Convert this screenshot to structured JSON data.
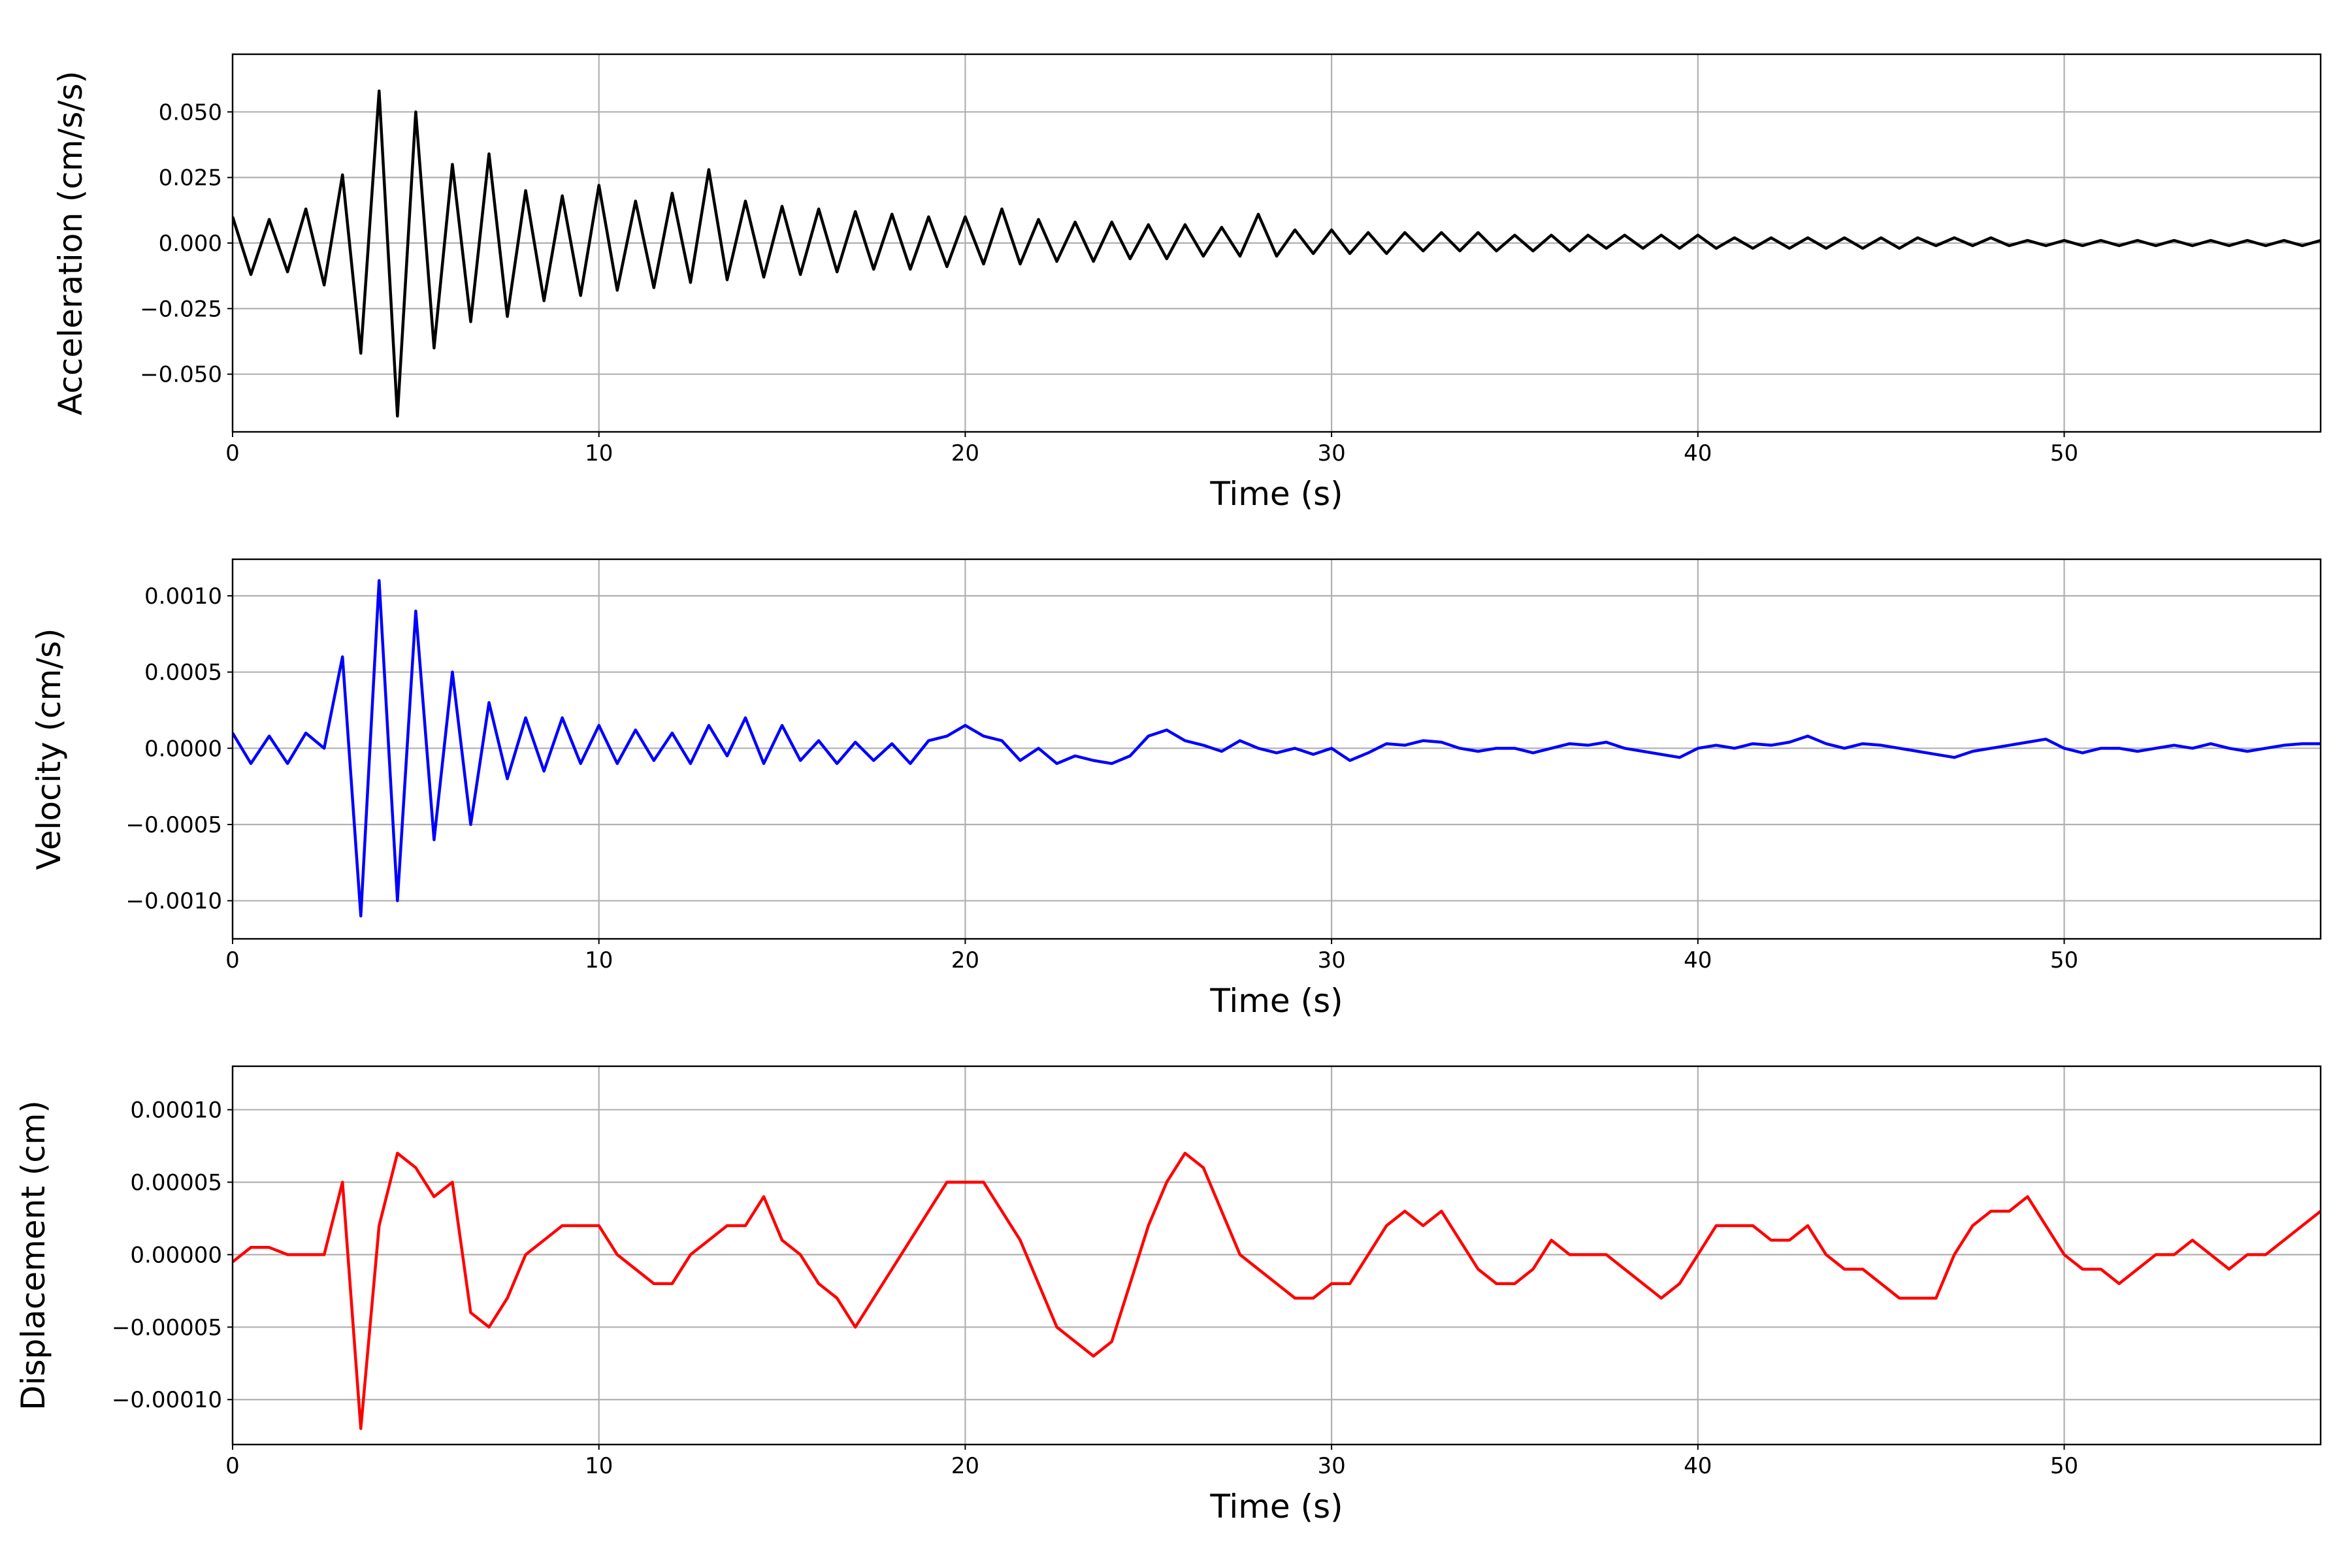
{
  "chart_data": [
    {
      "type": "line",
      "ylabel": "Acceleration (cm/s/s)",
      "xlabel": "Time (s)",
      "color": "#000000",
      "grid": true,
      "xlim": [
        0,
        57
      ],
      "xticks": [
        0,
        10,
        20,
        30,
        40,
        50
      ],
      "ylim": [
        -0.072,
        0.072
      ],
      "yticks": [
        {
          "value": -0.05,
          "label": "−0.050"
        },
        {
          "value": -0.025,
          "label": "−0.025"
        },
        {
          "value": 0,
          "label": "0.000"
        },
        {
          "value": 0.025,
          "label": "0.025"
        },
        {
          "value": 0.05,
          "label": "0.050"
        }
      ],
      "x": [
        0,
        0.5,
        1,
        1.5,
        2,
        2.5,
        3,
        3.5,
        4,
        4.5,
        5,
        5.5,
        6,
        6.5,
        7,
        7.5,
        8,
        8.5,
        9,
        9.5,
        10,
        10.5,
        11,
        11.5,
        12,
        12.5,
        13,
        13.5,
        14,
        14.5,
        15,
        15.5,
        16,
        16.5,
        17,
        17.5,
        18,
        18.5,
        19,
        19.5,
        20,
        20.5,
        21,
        21.5,
        22,
        22.5,
        23,
        23.5,
        24,
        24.5,
        25,
        25.5,
        26,
        26.5,
        27,
        27.5,
        28,
        28.5,
        29,
        29.5,
        30,
        30.5,
        31,
        31.5,
        32,
        32.5,
        33,
        33.5,
        34,
        34.5,
        35,
        35.5,
        36,
        36.5,
        37,
        37.5,
        38,
        38.5,
        39,
        39.5,
        40,
        40.5,
        41,
        41.5,
        42,
        42.5,
        43,
        43.5,
        44,
        44.5,
        45,
        45.5,
        46,
        46.5,
        47,
        47.5,
        48,
        48.5,
        49,
        49.5,
        50,
        50.5,
        51,
        51.5,
        52,
        52.5,
        53,
        53.5,
        54,
        54.5,
        55,
        55.5,
        56,
        56.5,
        57
      ],
      "values": [
        0.01,
        -0.012,
        0.009,
        -0.011,
        0.013,
        -0.016,
        0.026,
        -0.042,
        0.058,
        -0.066,
        0.05,
        -0.04,
        0.03,
        -0.03,
        0.034,
        -0.028,
        0.02,
        -0.022,
        0.018,
        -0.02,
        0.022,
        -0.018,
        0.016,
        -0.017,
        0.019,
        -0.015,
        0.028,
        -0.014,
        0.016,
        -0.013,
        0.014,
        -0.012,
        0.013,
        -0.011,
        0.012,
        -0.01,
        0.011,
        -0.01,
        0.01,
        -0.009,
        0.01,
        -0.008,
        0.013,
        -0.008,
        0.009,
        -0.007,
        0.008,
        -0.007,
        0.008,
        -0.006,
        0.007,
        -0.006,
        0.007,
        -0.005,
        0.006,
        -0.005,
        0.011,
        -0.005,
        0.005,
        -0.004,
        0.005,
        -0.004,
        0.004,
        -0.004,
        0.004,
        -0.003,
        0.004,
        -0.003,
        0.004,
        -0.003,
        0.003,
        -0.003,
        0.003,
        -0.003,
        0.003,
        -0.002,
        0.003,
        -0.002,
        0.003,
        -0.002,
        0.003,
        -0.002,
        0.002,
        -0.002,
        0.002,
        -0.002,
        0.002,
        -0.002,
        0.002,
        -0.002,
        0.002,
        -0.002,
        0.002,
        -0.001,
        0.002,
        -0.001,
        0.002,
        -0.001,
        0.001,
        -0.001,
        0.001,
        -0.001,
        0.001,
        -0.001,
        0.001,
        -0.001,
        0.001,
        -0.001,
        0.001,
        -0.001,
        0.001,
        -0.001,
        0.001,
        -0.001,
        0.001
      ]
    },
    {
      "type": "line",
      "ylabel": "Velocity (cm/s)",
      "xlabel": "Time (s)",
      "color": "#0000ff",
      "grid": true,
      "xlim": [
        0,
        57
      ],
      "xticks": [
        0,
        10,
        20,
        30,
        40,
        50
      ],
      "ylim": [
        -0.00125,
        0.00124
      ],
      "yticks": [
        {
          "value": -0.001,
          "label": "−0.0010"
        },
        {
          "value": -0.0005,
          "label": "−0.0005"
        },
        {
          "value": 0,
          "label": "0.0000"
        },
        {
          "value": 0.0005,
          "label": "0.0005"
        },
        {
          "value": 0.001,
          "label": "0.0010"
        }
      ],
      "x": [
        0,
        0.5,
        1,
        1.5,
        2,
        2.5,
        3,
        3.5,
        4,
        4.5,
        5,
        5.5,
        6,
        6.5,
        7,
        7.5,
        8,
        8.5,
        9,
        9.5,
        10,
        10.5,
        11,
        11.5,
        12,
        12.5,
        13,
        13.5,
        14,
        14.5,
        15,
        15.5,
        16,
        16.5,
        17,
        17.5,
        18,
        18.5,
        19,
        19.5,
        20,
        20.5,
        21,
        21.5,
        22,
        22.5,
        23,
        23.5,
        24,
        24.5,
        25,
        25.5,
        26,
        26.5,
        27,
        27.5,
        28,
        28.5,
        29,
        29.5,
        30,
        30.5,
        31,
        31.5,
        32,
        32.5,
        33,
        33.5,
        34,
        34.5,
        35,
        35.5,
        36,
        36.5,
        37,
        37.5,
        38,
        38.5,
        39,
        39.5,
        40,
        40.5,
        41,
        41.5,
        42,
        42.5,
        43,
        43.5,
        44,
        44.5,
        45,
        45.5,
        46,
        46.5,
        47,
        47.5,
        48,
        48.5,
        49,
        49.5,
        50,
        50.5,
        51,
        51.5,
        52,
        52.5,
        53,
        53.5,
        54,
        54.5,
        55,
        55.5,
        56,
        56.5,
        57
      ],
      "values": [
        0.0001,
        -0.0001,
        8e-05,
        -0.0001,
        0.0001,
        0.0,
        0.0006,
        -0.0011,
        0.0011,
        -0.001,
        0.0009,
        -0.0006,
        0.0005,
        -0.0005,
        0.0003,
        -0.0002,
        0.0002,
        -0.00015,
        0.0002,
        -0.0001,
        0.00015,
        -0.0001,
        0.00012,
        -8e-05,
        0.0001,
        -0.0001,
        0.00015,
        -5e-05,
        0.0002,
        -0.0001,
        0.00015,
        -8e-05,
        5e-05,
        -0.0001,
        4e-05,
        -8e-05,
        3e-05,
        -0.0001,
        5e-05,
        8e-05,
        0.00015,
        8e-05,
        5e-05,
        -8e-05,
        0.0,
        -0.0001,
        -5e-05,
        -8e-05,
        -0.0001,
        -5e-05,
        8e-05,
        0.00012,
        5e-05,
        2e-05,
        -2e-05,
        5e-05,
        0.0,
        -3e-05,
        0.0,
        -4e-05,
        0.0,
        -8e-05,
        -3e-05,
        3e-05,
        2e-05,
        5e-05,
        4e-05,
        0.0,
        -2e-05,
        0.0,
        0.0,
        -3e-05,
        0.0,
        3e-05,
        2e-05,
        4e-05,
        0.0,
        -2e-05,
        -4e-05,
        -6e-05,
        0.0,
        2e-05,
        0.0,
        3e-05,
        2e-05,
        4e-05,
        8e-05,
        3e-05,
        0.0,
        3e-05,
        2e-05,
        0.0,
        -2e-05,
        -4e-05,
        -6e-05,
        -2e-05,
        0.0,
        2e-05,
        4e-05,
        6e-05,
        0.0,
        -3e-05,
        0.0,
        0.0,
        -2e-05,
        0.0,
        2e-05,
        0.0,
        3e-05,
        0.0,
        -2e-05,
        0.0,
        2e-05,
        3e-05,
        3e-05
      ]
    },
    {
      "type": "line",
      "ylabel": "Displacement (cm)",
      "xlabel": "Time (s)",
      "color": "#ff0000",
      "grid": true,
      "xlim": [
        0,
        57
      ],
      "xticks": [
        0,
        10,
        20,
        30,
        40,
        50
      ],
      "ylim": [
        -0.000131,
        0.00013
      ],
      "yticks": [
        {
          "value": -0.0001,
          "label": "−0.00010"
        },
        {
          "value": -5e-05,
          "label": "−0.00005"
        },
        {
          "value": 0,
          "label": "0.00000"
        },
        {
          "value": 5e-05,
          "label": "0.00005"
        },
        {
          "value": 0.0001,
          "label": "0.00010"
        }
      ],
      "x": [
        0,
        0.5,
        1,
        1.5,
        2,
        2.5,
        3,
        3.5,
        4,
        4.5,
        5,
        5.5,
        6,
        6.5,
        7,
        7.5,
        8,
        8.5,
        9,
        9.5,
        10,
        10.5,
        11,
        11.5,
        12,
        12.5,
        13,
        13.5,
        14,
        14.5,
        15,
        15.5,
        16,
        16.5,
        17,
        17.5,
        18,
        18.5,
        19,
        19.5,
        20,
        20.5,
        21,
        21.5,
        22,
        22.5,
        23,
        23.5,
        24,
        24.5,
        25,
        25.5,
        26,
        26.5,
        27,
        27.5,
        28,
        28.5,
        29,
        29.5,
        30,
        30.5,
        31,
        31.5,
        32,
        32.5,
        33,
        33.5,
        34,
        34.5,
        35,
        35.5,
        36,
        36.5,
        37,
        37.5,
        38,
        38.5,
        39,
        39.5,
        40,
        40.5,
        41,
        41.5,
        42,
        42.5,
        43,
        43.5,
        44,
        44.5,
        45,
        45.5,
        46,
        46.5,
        47,
        47.5,
        48,
        48.5,
        49,
        49.5,
        50,
        50.5,
        51,
        51.5,
        52,
        52.5,
        53,
        53.5,
        54,
        54.5,
        55,
        55.5,
        56,
        56.5,
        57
      ],
      "values": [
        -5e-06,
        5e-06,
        5e-06,
        0.0,
        0.0,
        0.0,
        5e-05,
        -0.00012,
        2e-05,
        7e-05,
        6e-05,
        4e-05,
        5e-05,
        -4e-05,
        -5e-05,
        -3e-05,
        0.0,
        1e-05,
        2e-05,
        2e-05,
        2e-05,
        0.0,
        -1e-05,
        -2e-05,
        -2e-05,
        0.0,
        1e-05,
        2e-05,
        2e-05,
        4e-05,
        1e-05,
        0.0,
        -2e-05,
        -3e-05,
        -5e-05,
        -3e-05,
        -1e-05,
        1e-05,
        3e-05,
        5e-05,
        5e-05,
        5e-05,
        3e-05,
        1e-05,
        -2e-05,
        -5e-05,
        -6e-05,
        -7e-05,
        -6e-05,
        -2e-05,
        2e-05,
        5e-05,
        7e-05,
        6e-05,
        3e-05,
        0.0,
        -1e-05,
        -2e-05,
        -3e-05,
        -3e-05,
        -2e-05,
        -2e-05,
        0.0,
        2e-05,
        3e-05,
        2e-05,
        3e-05,
        1e-05,
        -1e-05,
        -2e-05,
        -2e-05,
        -1e-05,
        1e-05,
        0.0,
        0.0,
        0.0,
        -1e-05,
        -2e-05,
        -3e-05,
        -2e-05,
        0.0,
        2e-05,
        2e-05,
        2e-05,
        1e-05,
        1e-05,
        2e-05,
        0.0,
        -1e-05,
        -1e-05,
        -2e-05,
        -3e-05,
        -3e-05,
        -3e-05,
        0.0,
        2e-05,
        3e-05,
        3e-05,
        4e-05,
        2e-05,
        0.0,
        -1e-05,
        -1e-05,
        -2e-05,
        -1e-05,
        0.0,
        0.0,
        1e-05,
        0.0,
        -1e-05,
        0.0,
        0.0,
        1e-05,
        2e-05,
        3e-05
      ]
    }
  ]
}
